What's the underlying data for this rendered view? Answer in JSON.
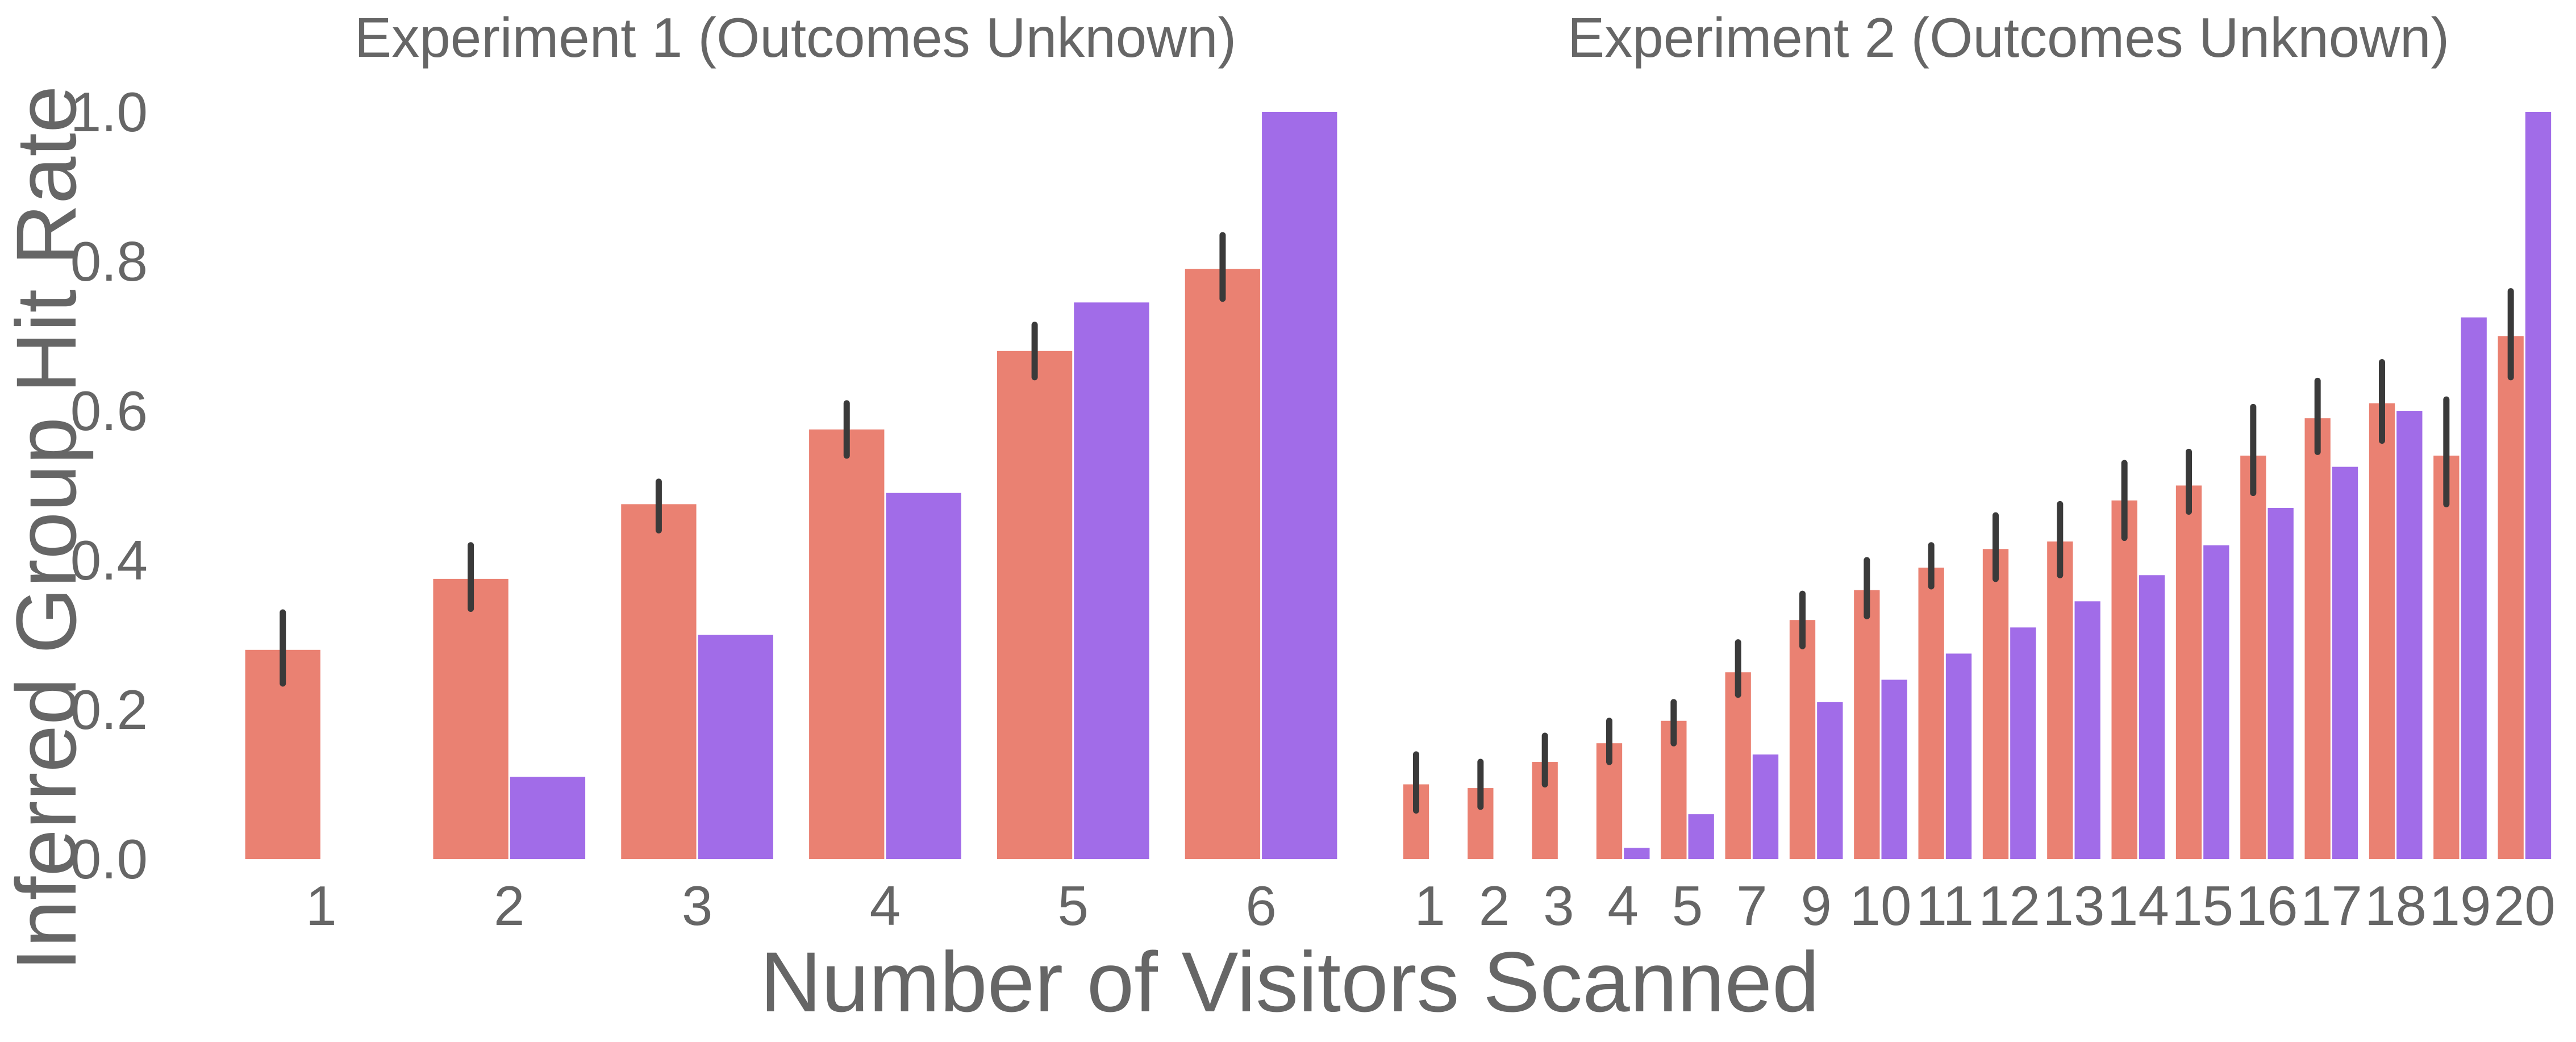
{
  "figure": {
    "ylabel": "Inferred Group Hit Rate",
    "xlabel": "Number of Visitors Scanned",
    "colors": {
      "inferred": "#ea8172",
      "optimal": "#a16ce8",
      "errorbar": "#3a3a3a",
      "text": "#666666"
    }
  },
  "chart_data": [
    {
      "type": "bar",
      "title": "Experiment 1 (Outcomes Unknown)",
      "ylabel": "Inferred Group Hit Rate",
      "ylim": [
        0,
        1.0
      ],
      "yticks": [
        "0.0",
        "0.2",
        "0.4",
        "0.6",
        "0.8",
        "1.0"
      ],
      "grid": false,
      "categories": [
        "1",
        "2",
        "3",
        "4",
        "5",
        "6"
      ],
      "series": [
        {
          "values": [
            0.28,
            0.375,
            0.475,
            0.575,
            0.68,
            0.79
          ],
          "error_low": [
            0.235,
            0.335,
            0.44,
            0.54,
            0.645,
            0.75
          ],
          "error_high": [
            0.33,
            0.42,
            0.505,
            0.61,
            0.715,
            0.835
          ]
        },
        {
          "values": [
            0.0,
            0.11,
            0.3,
            0.49,
            0.745,
            1.0
          ]
        }
      ]
    },
    {
      "type": "bar",
      "title": "Experiment 2 (Outcomes Unknown)",
      "ylim": [
        0,
        1.0
      ],
      "grid": false,
      "categories": [
        "1",
        "2",
        "3",
        "4",
        "5",
        "7",
        "9",
        "10",
        "11",
        "12",
        "13",
        "14",
        "15",
        "16",
        "17",
        "18",
        "19",
        "20"
      ],
      "series": [
        {
          "values": [
            0.1,
            0.095,
            0.13,
            0.155,
            0.185,
            0.25,
            0.32,
            0.36,
            0.39,
            0.415,
            0.425,
            0.48,
            0.5,
            0.54,
            0.59,
            0.61,
            0.54,
            0.7
          ],
          "error_low": [
            0.065,
            0.07,
            0.1,
            0.13,
            0.155,
            0.22,
            0.285,
            0.325,
            0.365,
            0.375,
            0.38,
            0.43,
            0.465,
            0.49,
            0.545,
            0.56,
            0.475,
            0.645
          ],
          "error_high": [
            0.14,
            0.13,
            0.165,
            0.185,
            0.21,
            0.29,
            0.355,
            0.4,
            0.42,
            0.46,
            0.475,
            0.53,
            0.545,
            0.605,
            0.64,
            0.665,
            0.615,
            0.76
          ]
        },
        {
          "values": [
            0.0,
            0.0,
            0.0,
            0.015,
            0.06,
            0.14,
            0.21,
            0.24,
            0.275,
            0.31,
            0.345,
            0.38,
            0.42,
            0.47,
            0.525,
            0.6,
            0.725,
            1.0
          ]
        }
      ]
    }
  ]
}
